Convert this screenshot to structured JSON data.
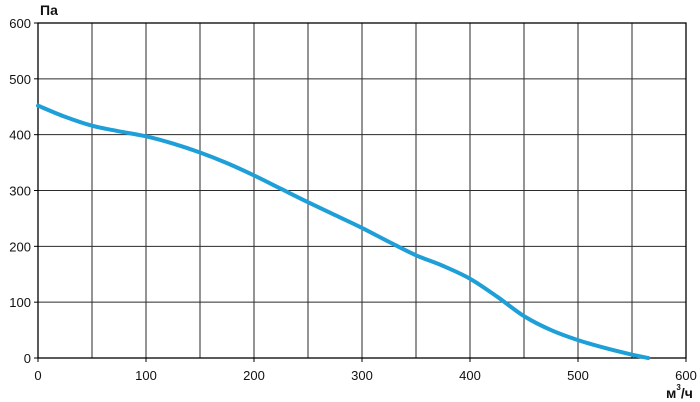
{
  "chart_data": {
    "type": "line",
    "title": "",
    "ylabel": "Па",
    "xlabel": {
      "base": "м",
      "superscript": "3",
      "suffix": "/ч"
    },
    "xlim": [
      0,
      600
    ],
    "ylim": [
      0,
      600
    ],
    "x_ticks": [
      "0",
      "100",
      "200",
      "300",
      "400",
      "500",
      "600"
    ],
    "y_ticks": [
      "0",
      "100",
      "200",
      "300",
      "400",
      "500",
      "600"
    ],
    "x_grid_step": 50,
    "y_grid_step": 100,
    "grid": true,
    "legend": "none",
    "series": [
      {
        "color": "#1e9fd8",
        "points": [
          [
            0,
            452
          ],
          [
            25,
            432
          ],
          [
            50,
            416
          ],
          [
            75,
            406
          ],
          [
            100,
            397
          ],
          [
            125,
            384
          ],
          [
            150,
            368
          ],
          [
            175,
            349
          ],
          [
            200,
            327
          ],
          [
            225,
            303
          ],
          [
            250,
            279
          ],
          [
            275,
            256
          ],
          [
            300,
            233
          ],
          [
            325,
            208
          ],
          [
            350,
            184
          ],
          [
            375,
            165
          ],
          [
            400,
            142
          ],
          [
            425,
            110
          ],
          [
            450,
            75
          ],
          [
            475,
            50
          ],
          [
            500,
            32
          ],
          [
            525,
            18
          ],
          [
            550,
            6
          ],
          [
            565,
            0
          ]
        ]
      }
    ]
  },
  "colors": {
    "grid": "#2a2a2a",
    "axis": "#000000",
    "series": "#1e9fd8",
    "text": "#111111"
  }
}
